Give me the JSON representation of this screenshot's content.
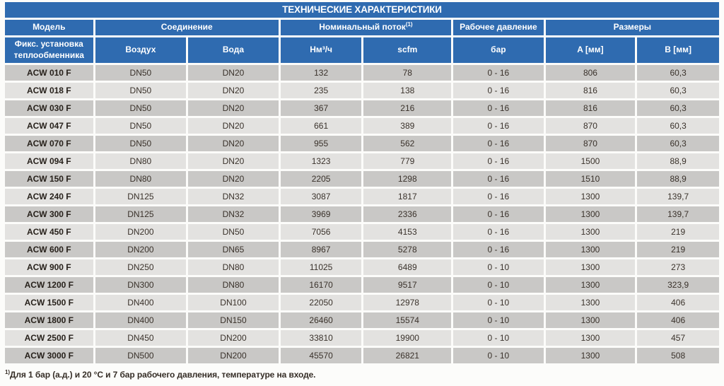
{
  "title": "ТЕХНИЧЕСКИЕ ХАРАКТЕРИСТИКИ",
  "colors": {
    "header_blue": "#2f6bb0",
    "row_dark_gray": "#c9c8c6",
    "row_light_gray": "#e3e2e0",
    "cell_text": "#3a322b",
    "header_text": "#ffffff",
    "separator_white": "#ffffff",
    "page_background": "#fcfcfa"
  },
  "table": {
    "header_groups": [
      {
        "label": "Модель",
        "sup": ""
      },
      {
        "label": "Соединение",
        "sup": ""
      },
      {
        "label": "Номинальный поток",
        "sup": "(1)"
      },
      {
        "label": "Рабочее давление",
        "sup": ""
      },
      {
        "label": "Размеры",
        "sup": ""
      }
    ],
    "subheaders": [
      "Фикс. установка теплообменника",
      "Воздух",
      "Вода",
      "Нм³/ч",
      "scfm",
      "бар",
      "A [мм]",
      "B [мм]"
    ],
    "rows": [
      [
        "ACW 010 F",
        "DN50",
        "DN20",
        "132",
        "78",
        "0 - 16",
        "806",
        "60,3"
      ],
      [
        "ACW 018 F",
        "DN50",
        "DN20",
        "235",
        "138",
        "0 - 16",
        "816",
        "60,3"
      ],
      [
        "ACW 030 F",
        "DN50",
        "DN20",
        "367",
        "216",
        "0 - 16",
        "816",
        "60,3"
      ],
      [
        "ACW 047 F",
        "DN50",
        "DN20",
        "661",
        "389",
        "0 - 16",
        "870",
        "60,3"
      ],
      [
        "ACW 070 F",
        "DN50",
        "DN20",
        "955",
        "562",
        "0 - 16",
        "870",
        "60,3"
      ],
      [
        "ACW 094 F",
        "DN80",
        "DN20",
        "1323",
        "779",
        "0 - 16",
        "1500",
        "88,9"
      ],
      [
        "ACW 150 F",
        "DN80",
        "DN20",
        "2205",
        "1298",
        "0 - 16",
        "1510",
        "88,9"
      ],
      [
        "ACW 240 F",
        "DN125",
        "DN32",
        "3087",
        "1817",
        "0 - 16",
        "1300",
        "139,7"
      ],
      [
        "ACW 300 F",
        "DN125",
        "DN32",
        "3969",
        "2336",
        "0 - 16",
        "1300",
        "139,7"
      ],
      [
        "ACW 450 F",
        "DN200",
        "DN50",
        "7056",
        "4153",
        "0 - 16",
        "1300",
        "219"
      ],
      [
        "ACW 600 F",
        "DN200",
        "DN65",
        "8967",
        "5278",
        "0 - 16",
        "1300",
        "219"
      ],
      [
        "ACW 900 F",
        "DN250",
        "DN80",
        "11025",
        "6489",
        "0 - 10",
        "1300",
        "273"
      ],
      [
        "ACW 1200 F",
        "DN300",
        "DN80",
        "16170",
        "9517",
        "0 - 10",
        "1300",
        "323,9"
      ],
      [
        "ACW 1500 F",
        "DN400",
        "DN100",
        "22050",
        "12978",
        "0 - 10",
        "1300",
        "406"
      ],
      [
        "ACW 1800 F",
        "DN400",
        "DN150",
        "26460",
        "15574",
        "0 - 10",
        "1300",
        "406"
      ],
      [
        "ACW 2500 F",
        "DN450",
        "DN200",
        "33810",
        "19900",
        "0 - 10",
        "1300",
        "457"
      ],
      [
        "ACW 3000 F",
        "DN500",
        "DN200",
        "45570",
        "26821",
        "0 - 10",
        "1300",
        "508"
      ]
    ]
  },
  "footnote": {
    "sup": "1)",
    "text": "Для 1 бар (а.д.) и 20 °C и 7 бар рабочего давления, температуре на входе."
  }
}
